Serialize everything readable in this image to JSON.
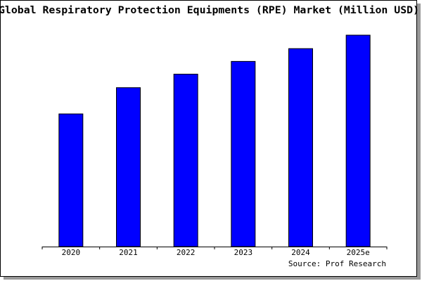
{
  "chart_data": {
    "type": "bar",
    "title": "Global Respiratory Protection Equipments (RPE) Market (Million USD)",
    "source": "Source: Prof Research",
    "categories": [
      "2020",
      "2021",
      "2022",
      "2023",
      "2024",
      "2025e"
    ],
    "values": [
      187,
      224,
      243,
      261,
      279,
      298
    ],
    "color": "#0000ff",
    "ylim": [
      0,
      300
    ]
  }
}
